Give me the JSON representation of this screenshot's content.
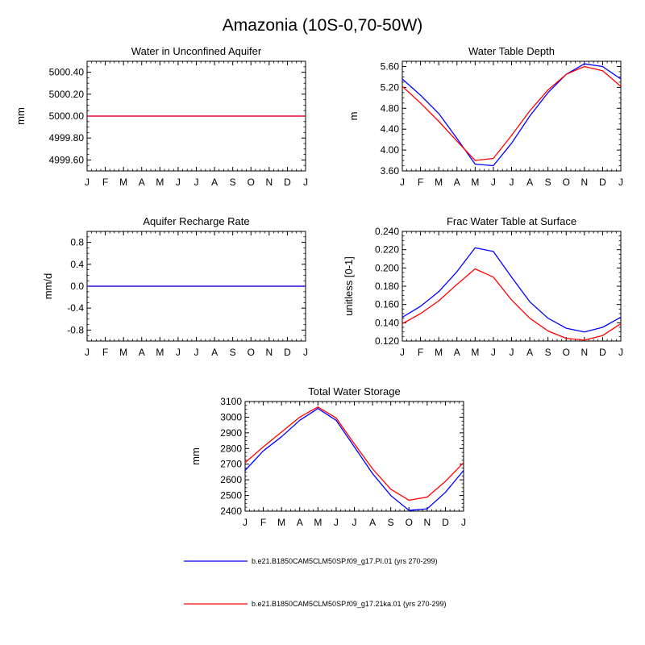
{
  "figure": {
    "title": "Amazonia (10S-0,70-50W)"
  },
  "legend": {
    "items": [
      {
        "label": "b.e21.B1850CAM5CLM50SP.f09_g17.PI.01 (yrs 270-299)",
        "color": "#0000ff"
      },
      {
        "label": "b.e21.B1850CAM5CLM50SP.f09_g17.21ka.01 (yrs 270-299)",
        "color": "#ff0000"
      }
    ]
  },
  "chart_data": [
    {
      "type": "line",
      "title": "Water in Unconfined Aquifer",
      "ylabel": "mm",
      "categories": [
        "J",
        "F",
        "M",
        "A",
        "M",
        "J",
        "J",
        "A",
        "S",
        "O",
        "N",
        "D",
        "J"
      ],
      "ylim": [
        4999.5,
        5000.5
      ],
      "yticks": [
        "5000.40",
        "5000.20",
        "5000.00",
        "4999.80",
        "4999.60"
      ],
      "ytick_values": [
        5000.4,
        5000.2,
        5000.0,
        4999.8,
        4999.6
      ],
      "series": [
        {
          "color": "#0000ff",
          "values": [
            5000,
            5000,
            5000,
            5000,
            5000,
            5000,
            5000,
            5000,
            5000,
            5000,
            5000,
            5000,
            5000
          ]
        },
        {
          "color": "#ff0000",
          "values": [
            5000,
            5000,
            5000,
            5000,
            5000,
            5000,
            5000,
            5000,
            5000,
            5000,
            5000,
            5000,
            5000
          ]
        }
      ]
    },
    {
      "type": "line",
      "title": "Water Table Depth",
      "ylabel": "m",
      "categories": [
        "J",
        "F",
        "M",
        "A",
        "M",
        "J",
        "J",
        "A",
        "S",
        "O",
        "N",
        "D",
        "J"
      ],
      "ylim": [
        3.6,
        5.7
      ],
      "yticks": [
        "5.60",
        "5.20",
        "4.80",
        "4.40",
        "4.00",
        "3.60"
      ],
      "ytick_values": [
        5.6,
        5.2,
        4.8,
        4.4,
        4.0,
        3.6
      ],
      "series": [
        {
          "color": "#0000ff",
          "values": [
            5.36,
            5.05,
            4.7,
            4.22,
            3.73,
            3.7,
            4.13,
            4.65,
            5.1,
            5.45,
            5.65,
            5.6,
            5.36
          ]
        },
        {
          "color": "#ff0000",
          "values": [
            5.22,
            4.9,
            4.55,
            4.17,
            3.8,
            3.84,
            4.28,
            4.75,
            5.15,
            5.45,
            5.6,
            5.52,
            5.22
          ]
        }
      ]
    },
    {
      "type": "line",
      "title": "Aquifer Recharge Rate",
      "ylabel": "mm/d",
      "categories": [
        "J",
        "F",
        "M",
        "A",
        "M",
        "J",
        "J",
        "A",
        "S",
        "O",
        "N",
        "D",
        "J"
      ],
      "ylim": [
        -1.0,
        1.0
      ],
      "yticks": [
        "0.8",
        "0.4",
        "0.0",
        "-0.4",
        "-0.8"
      ],
      "ytick_values": [
        0.8,
        0.4,
        0.0,
        -0.4,
        -0.8
      ],
      "series": [
        {
          "color": "#ff0000",
          "values": [
            0,
            0,
            0,
            0,
            0,
            0,
            0,
            0,
            0,
            0,
            0,
            0,
            0
          ]
        },
        {
          "color": "#0000ff",
          "values": [
            0,
            0,
            0,
            0,
            0,
            0,
            0,
            0,
            0,
            0,
            0,
            0,
            0
          ]
        }
      ]
    },
    {
      "type": "line",
      "title": "Frac Water Table at Surface",
      "ylabel": "unitless [0-1]",
      "categories": [
        "J",
        "F",
        "M",
        "A",
        "M",
        "J",
        "J",
        "A",
        "S",
        "O",
        "N",
        "D",
        "J"
      ],
      "ylim": [
        0.12,
        0.24
      ],
      "yticks": [
        "0.240",
        "0.220",
        "0.200",
        "0.180",
        "0.160",
        "0.140",
        "0.120"
      ],
      "ytick_values": [
        0.24,
        0.22,
        0.2,
        0.18,
        0.16,
        0.14,
        0.12
      ],
      "series": [
        {
          "color": "#0000ff",
          "values": [
            0.146,
            0.158,
            0.174,
            0.196,
            0.222,
            0.218,
            0.19,
            0.163,
            0.145,
            0.134,
            0.13,
            0.135,
            0.146
          ]
        },
        {
          "color": "#ff0000",
          "values": [
            0.139,
            0.15,
            0.164,
            0.182,
            0.199,
            0.19,
            0.165,
            0.145,
            0.131,
            0.123,
            0.121,
            0.126,
            0.139
          ]
        }
      ]
    },
    {
      "type": "line",
      "title": "Total Water Storage",
      "ylabel": "mm",
      "categories": [
        "J",
        "F",
        "M",
        "A",
        "M",
        "J",
        "J",
        "A",
        "S",
        "O",
        "N",
        "D",
        "J"
      ],
      "ylim": [
        2400,
        3100
      ],
      "yticks": [
        "3100",
        "3000",
        "2900",
        "2800",
        "2700",
        "2600",
        "2500",
        "2400"
      ],
      "ytick_values": [
        3100,
        3000,
        2900,
        2800,
        2700,
        2600,
        2500,
        2400
      ],
      "series": [
        {
          "color": "#0000ff",
          "values": [
            2660,
            2785,
            2875,
            2980,
            3055,
            2980,
            2810,
            2640,
            2500,
            2405,
            2415,
            2520,
            2660
          ]
        },
        {
          "color": "#ff0000",
          "values": [
            2710,
            2810,
            2905,
            3000,
            3065,
            2995,
            2830,
            2670,
            2540,
            2470,
            2490,
            2590,
            2710
          ]
        }
      ]
    }
  ]
}
